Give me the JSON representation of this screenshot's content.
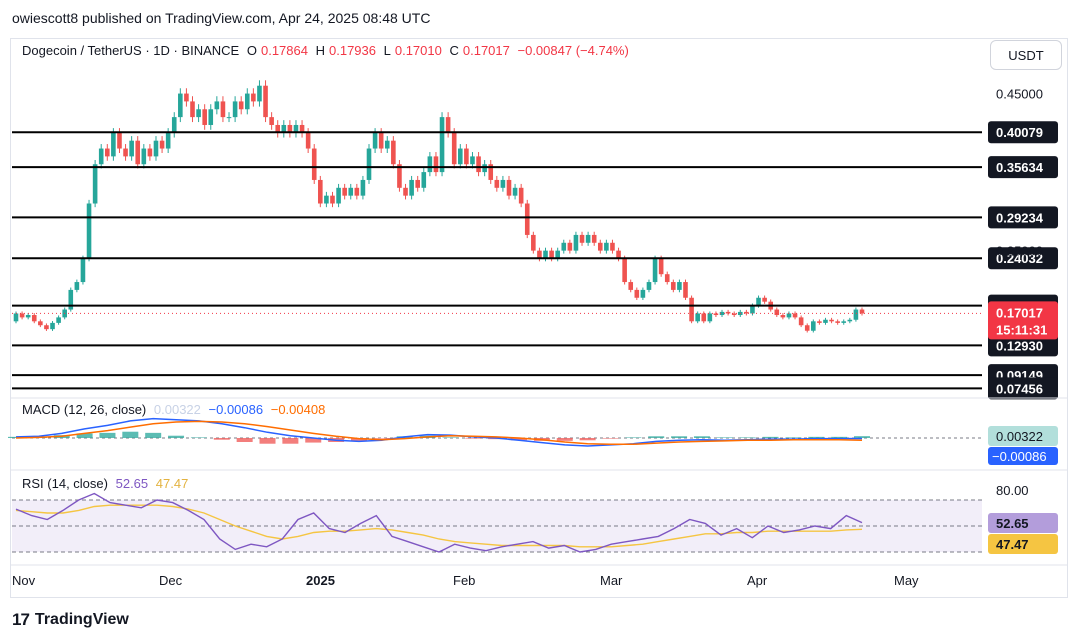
{
  "header": {
    "publisher": "owiescott8 published on TradingView.com, Apr 24, 2025 08:48 UTC"
  },
  "toolbar": {
    "currency": "USDT"
  },
  "footer": {
    "brand": "TradingView"
  },
  "legend": {
    "symbol": "Dogecoin / TetherUS · 1D · BINANCE",
    "open_label": "O",
    "open": "0.17864",
    "high_label": "H",
    "high": "0.17936",
    "low_label": "L",
    "low": "0.17010",
    "close_label": "C",
    "close": "0.17017",
    "change": "−0.00847 (−4.74%)"
  },
  "macd_legend": {
    "title": "MACD (12, 26, close)",
    "hist": "0.00322",
    "macd": "−0.00086",
    "signal": "−0.00408"
  },
  "rsi_legend": {
    "title": "RSI (14, close)",
    "rsi": "52.65",
    "ma": "47.47"
  },
  "colors": {
    "up": "#26a69a",
    "down": "#ef5350",
    "macd": "#2962ff",
    "signal": "#ff6d00",
    "rsi": "#7e57c2",
    "rsi_ma": "#f5c542",
    "price_tag": "#f23645"
  },
  "chart_data": [
    {
      "type": "candlestick",
      "title": "Dogecoin / TetherUS · 1D · BINANCE",
      "x_ticks": [
        "Nov",
        "Dec",
        "2025",
        "Feb",
        "Mar",
        "Apr",
        "May"
      ],
      "axis_labels": [
        "0.45000",
        "0.25000"
      ],
      "horizontal_levels": [
        "0.40079",
        "0.35634",
        "0.29234",
        "0.24032",
        "0.18000",
        "0.12930",
        "0.09149",
        "0.07456"
      ],
      "current_price": "0.17017",
      "countdown": "15:11:31",
      "ylim": [
        0.07,
        0.48
      ],
      "open_close": [
        [
          0.16,
          0.17
        ],
        [
          0.17,
          0.165
        ],
        [
          0.165,
          0.168
        ],
        [
          0.168,
          0.16
        ],
        [
          0.16,
          0.155
        ],
        [
          0.155,
          0.15
        ],
        [
          0.15,
          0.158
        ],
        [
          0.158,
          0.165
        ],
        [
          0.165,
          0.175
        ],
        [
          0.175,
          0.2
        ],
        [
          0.2,
          0.21
        ],
        [
          0.21,
          0.24
        ],
        [
          0.24,
          0.31
        ],
        [
          0.31,
          0.36
        ],
        [
          0.36,
          0.38
        ],
        [
          0.38,
          0.37
        ],
        [
          0.37,
          0.4
        ],
        [
          0.4,
          0.38
        ],
        [
          0.38,
          0.37
        ],
        [
          0.37,
          0.39
        ],
        [
          0.39,
          0.36
        ],
        [
          0.36,
          0.38
        ],
        [
          0.38,
          0.37
        ],
        [
          0.37,
          0.39
        ],
        [
          0.39,
          0.38
        ],
        [
          0.38,
          0.4
        ],
        [
          0.4,
          0.42
        ],
        [
          0.42,
          0.45
        ],
        [
          0.45,
          0.44
        ],
        [
          0.44,
          0.42
        ],
        [
          0.42,
          0.43
        ],
        [
          0.43,
          0.41
        ],
        [
          0.41,
          0.43
        ],
        [
          0.43,
          0.44
        ],
        [
          0.44,
          0.42
        ],
        [
          0.42,
          0.42
        ],
        [
          0.42,
          0.44
        ],
        [
          0.44,
          0.43
        ],
        [
          0.43,
          0.45
        ],
        [
          0.45,
          0.44
        ],
        [
          0.44,
          0.46
        ],
        [
          0.46,
          0.42
        ],
        [
          0.42,
          0.41
        ],
        [
          0.41,
          0.4
        ],
        [
          0.4,
          0.41
        ],
        [
          0.41,
          0.4
        ],
        [
          0.4,
          0.41
        ],
        [
          0.41,
          0.4
        ],
        [
          0.4,
          0.38
        ],
        [
          0.38,
          0.34
        ],
        [
          0.34,
          0.31
        ],
        [
          0.31,
          0.32
        ],
        [
          0.32,
          0.31
        ],
        [
          0.31,
          0.33
        ],
        [
          0.33,
          0.32
        ],
        [
          0.32,
          0.33
        ],
        [
          0.33,
          0.32
        ],
        [
          0.32,
          0.34
        ],
        [
          0.34,
          0.38
        ],
        [
          0.38,
          0.4
        ],
        [
          0.4,
          0.38
        ],
        [
          0.38,
          0.39
        ],
        [
          0.39,
          0.36
        ],
        [
          0.36,
          0.33
        ],
        [
          0.33,
          0.32
        ],
        [
          0.32,
          0.34
        ],
        [
          0.34,
          0.33
        ],
        [
          0.33,
          0.35
        ],
        [
          0.35,
          0.37
        ],
        [
          0.37,
          0.35
        ],
        [
          0.35,
          0.42
        ],
        [
          0.42,
          0.4
        ],
        [
          0.4,
          0.36
        ],
        [
          0.36,
          0.38
        ],
        [
          0.38,
          0.36
        ],
        [
          0.36,
          0.37
        ],
        [
          0.37,
          0.35
        ],
        [
          0.35,
          0.36
        ],
        [
          0.36,
          0.34
        ],
        [
          0.34,
          0.33
        ],
        [
          0.33,
          0.34
        ],
        [
          0.34,
          0.32
        ],
        [
          0.32,
          0.33
        ],
        [
          0.33,
          0.31
        ],
        [
          0.31,
          0.27
        ],
        [
          0.27,
          0.25
        ],
        [
          0.25,
          0.24
        ],
        [
          0.24,
          0.25
        ],
        [
          0.25,
          0.24
        ],
        [
          0.24,
          0.25
        ],
        [
          0.25,
          0.26
        ],
        [
          0.26,
          0.25
        ],
        [
          0.25,
          0.27
        ],
        [
          0.27,
          0.26
        ],
        [
          0.26,
          0.27
        ],
        [
          0.27,
          0.26
        ],
        [
          0.26,
          0.25
        ],
        [
          0.25,
          0.26
        ],
        [
          0.26,
          0.25
        ],
        [
          0.25,
          0.24
        ],
        [
          0.24,
          0.21
        ],
        [
          0.21,
          0.2
        ],
        [
          0.2,
          0.19
        ],
        [
          0.19,
          0.2
        ],
        [
          0.2,
          0.21
        ],
        [
          0.21,
          0.24
        ],
        [
          0.24,
          0.22
        ],
        [
          0.22,
          0.21
        ],
        [
          0.21,
          0.2
        ],
        [
          0.2,
          0.21
        ],
        [
          0.21,
          0.19
        ],
        [
          0.19,
          0.16
        ],
        [
          0.16,
          0.17
        ],
        [
          0.17,
          0.16
        ],
        [
          0.16,
          0.17
        ],
        [
          0.17,
          0.168
        ],
        [
          0.168,
          0.172
        ],
        [
          0.172,
          0.17
        ],
        [
          0.17,
          0.168
        ],
        [
          0.168,
          0.172
        ],
        [
          0.172,
          0.17
        ],
        [
          0.17,
          0.18
        ],
        [
          0.18,
          0.19
        ],
        [
          0.19,
          0.185
        ],
        [
          0.185,
          0.175
        ],
        [
          0.175,
          0.168
        ],
        [
          0.168,
          0.165
        ],
        [
          0.165,
          0.17
        ],
        [
          0.17,
          0.165
        ],
        [
          0.165,
          0.155
        ],
        [
          0.155,
          0.148
        ],
        [
          0.148,
          0.16
        ],
        [
          0.16,
          0.158
        ],
        [
          0.158,
          0.162
        ],
        [
          0.162,
          0.16
        ],
        [
          0.16,
          0.158
        ],
        [
          0.158,
          0.16
        ],
        [
          0.16,
          0.162
        ],
        [
          0.162,
          0.175
        ],
        [
          0.175,
          0.17
        ]
      ]
    },
    {
      "type": "line",
      "title": "MACD (12, 26, close)",
      "series": [
        {
          "name": "MACD",
          "color": "#2962ff",
          "values": [
            0.002,
            0.003,
            0.008,
            0.016,
            0.022,
            0.03,
            0.034,
            0.032,
            0.03,
            0.025,
            0.018,
            0.01,
            0.004,
            0,
            -0.004,
            -0.006,
            -0.004,
            0.002,
            0.006,
            0.005,
            0.002,
            0,
            -0.004,
            -0.008,
            -0.012,
            -0.014,
            -0.012,
            -0.01,
            -0.006,
            -0.004,
            -0.003,
            -0.004,
            -0.003,
            -0.002,
            -0.002,
            -0.001,
            -0.001,
            -0.00086
          ]
        },
        {
          "name": "Signal",
          "color": "#ff6d00",
          "values": [
            0,
            0.001,
            0.003,
            0.008,
            0.013,
            0.019,
            0.025,
            0.028,
            0.029,
            0.028,
            0.025,
            0.02,
            0.014,
            0.008,
            0.003,
            -0.001,
            -0.003,
            -0.001,
            0.002,
            0.004,
            0.003,
            0.002,
            0,
            -0.003,
            -0.007,
            -0.01,
            -0.011,
            -0.011,
            -0.009,
            -0.007,
            -0.006,
            -0.005,
            -0.004,
            -0.004,
            -0.003,
            -0.003,
            -0.003,
            -0.00408
          ]
        }
      ],
      "histogram": [
        0.002,
        0.002,
        0.005,
        0.008,
        0.009,
        0.011,
        0.009,
        0.004,
        0.001,
        -0.003,
        -0.007,
        -0.01,
        -0.01,
        -0.008,
        -0.007,
        -0.005,
        -0.001,
        0.003,
        0.004,
        0.001,
        -0.001,
        -0.002,
        -0.004,
        -0.005,
        -0.005,
        -0.004,
        -0.001,
        0.001,
        0.003,
        0.003,
        0.003,
        0.001,
        0.001,
        0.002,
        0.001,
        0.002,
        0.002,
        0.00322
      ],
      "axis_labels": [
        "0.00322",
        "−0.00086"
      ]
    },
    {
      "type": "line",
      "title": "RSI (14, close)",
      "series": [
        {
          "name": "RSI",
          "color": "#7e57c2",
          "values": [
            63,
            58,
            55,
            62,
            70,
            75,
            68,
            66,
            64,
            70,
            68,
            62,
            55,
            40,
            32,
            36,
            34,
            40,
            55,
            60,
            48,
            45,
            52,
            58,
            42,
            38,
            34,
            30,
            36,
            33,
            31,
            34,
            36,
            38,
            33,
            35,
            30,
            32,
            36,
            38,
            40,
            42,
            48,
            55,
            52,
            43,
            48,
            41,
            50,
            45,
            47,
            50,
            48,
            58,
            52.65
          ]
        },
        {
          "name": "MA",
          "color": "#f5c542",
          "values": [
            62,
            61,
            60,
            60,
            62,
            65,
            66,
            66,
            66,
            66,
            65,
            63,
            60,
            55,
            50,
            46,
            42,
            40,
            42,
            45,
            46,
            46,
            47,
            48,
            47,
            45,
            43,
            40,
            38,
            37,
            36,
            35,
            35,
            35,
            35,
            35,
            34,
            34,
            34,
            35,
            36,
            38,
            40,
            42,
            44,
            44,
            45,
            45,
            46,
            46,
            46,
            46,
            46,
            47,
            47.47
          ]
        }
      ],
      "axis_labels": [
        "80.00",
        "52.65",
        "47.47"
      ]
    }
  ]
}
